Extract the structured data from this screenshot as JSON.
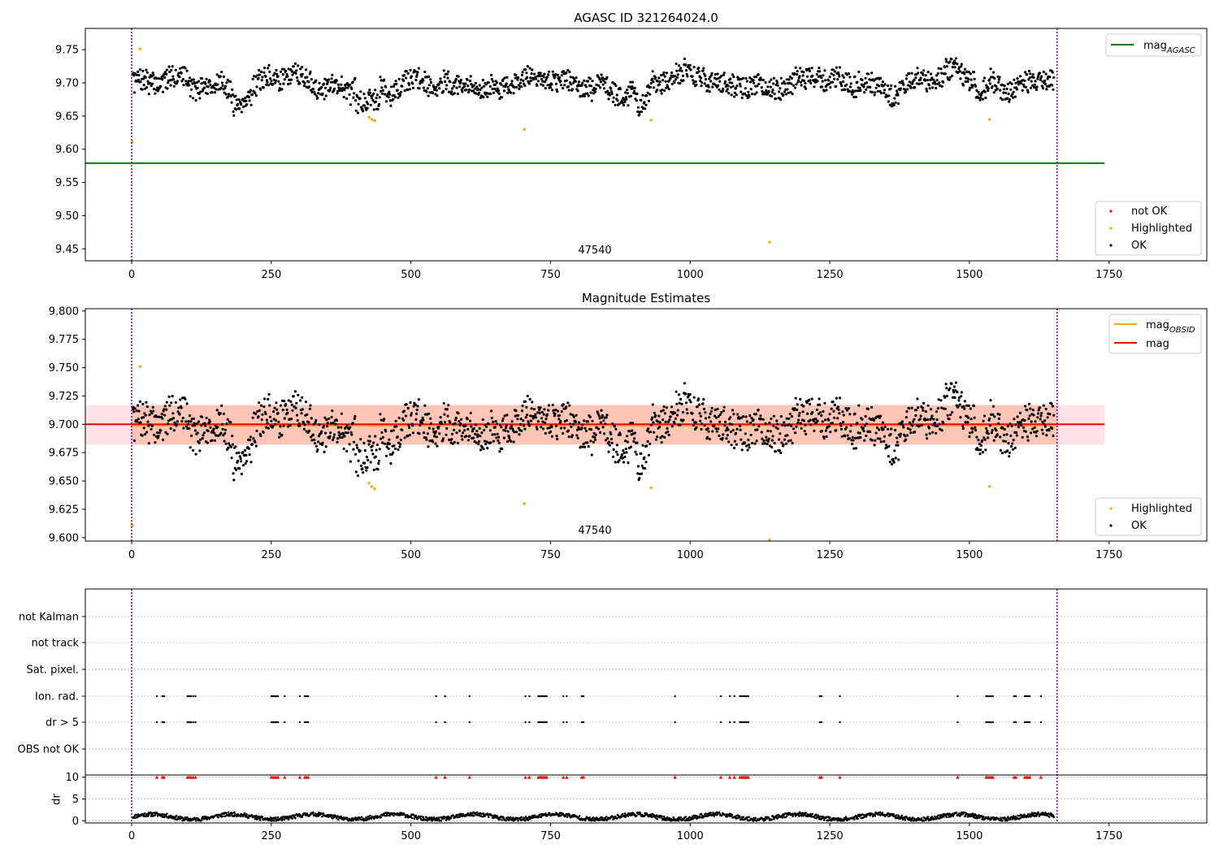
{
  "figure": {
    "title": "AGASC ID 321264024.0",
    "obsid_label": "47540"
  },
  "colors": {
    "ok": "#000000",
    "highlighted": "#ffa500",
    "not_ok": "#ff0000",
    "mag_agasc": "#008000",
    "mag_obsid": "#ffa500",
    "mag": "#ff0000",
    "obsid_boundary": "#800080",
    "band_outer": "#ffc0cb",
    "band_inner": "#ffa07a"
  },
  "chart_data": [
    {
      "type": "scatter",
      "title": "AGASC ID 321264024.0",
      "xlim": [
        -83,
        1925
      ],
      "ylim": [
        9.432,
        9.782
      ],
      "xticks": [
        0,
        250,
        500,
        750,
        1000,
        1250,
        1500,
        1750
      ],
      "yticks": [
        9.45,
        9.5,
        9.55,
        9.6,
        9.65,
        9.7,
        9.75
      ],
      "ytick_labels": [
        "9.45",
        "9.50",
        "9.55",
        "9.60",
        "9.65",
        "9.70",
        "9.75"
      ],
      "obsid_boundaries": [
        0,
        1657
      ],
      "annotation": {
        "text": "47540",
        "x": 830,
        "y": 9.442
      },
      "reference_lines": [
        {
          "name": "mag",
          "sub": "AGASC",
          "y": 9.579,
          "x": [
            -83,
            1742
          ],
          "color": "#008000"
        }
      ],
      "series": [
        {
          "name": "not OK",
          "color": "#ff0000",
          "points": []
        },
        {
          "name": "Highlighted",
          "color": "#ffa500",
          "points": [
            [
              1,
              9.611
            ],
            [
              15,
              9.751
            ],
            [
              425,
              9.648
            ],
            [
              430,
              9.645
            ],
            [
              435,
              9.643
            ],
            [
              703,
              9.63
            ],
            [
              930,
              9.644
            ],
            [
              1142,
              9.46
            ],
            [
              1536,
              9.645
            ]
          ]
        },
        {
          "name": "OK",
          "color": "#000000",
          "description_of_trend": "about 1650 points between 9.65 and 9.75 around 9.70"
        }
      ],
      "legend": [
        {
          "name": "mag",
          "sub": "AGASC",
          "kind": "line",
          "color": "#008000",
          "position": "top-right"
        },
        {
          "name": "not OK",
          "kind": "marker",
          "color": "#ff0000",
          "position": "lower-right"
        },
        {
          "name": "Highlighted",
          "kind": "marker",
          "color": "#ffa500",
          "position": "lower-right"
        },
        {
          "name": "OK",
          "kind": "marker",
          "color": "#000000",
          "position": "lower-right"
        }
      ]
    },
    {
      "type": "scatter",
      "title": "Magnitude Estimates",
      "xlim": [
        -83,
        1925
      ],
      "ylim": [
        9.597,
        9.802
      ],
      "xticks": [
        0,
        250,
        500,
        750,
        1000,
        1250,
        1500,
        1750
      ],
      "yticks": [
        9.6,
        9.625,
        9.65,
        9.675,
        9.7,
        9.725,
        9.75,
        9.775,
        9.8
      ],
      "ytick_labels": [
        "9.600",
        "9.625",
        "9.650",
        "9.675",
        "9.700",
        "9.725",
        "9.750",
        "9.775",
        "9.800"
      ],
      "obsid_boundaries": [
        0,
        1657
      ],
      "annotation": {
        "text": "47540",
        "x": 830,
        "y": 9.605
      },
      "bands": [
        {
          "x": [
            -83,
            1742
          ],
          "y": [
            9.682,
            9.717
          ],
          "color": "#ffc0cb"
        },
        {
          "x": [
            0,
            1657
          ],
          "y": [
            9.682,
            9.717
          ],
          "color": "#ffa07a"
        }
      ],
      "reference_lines": [
        {
          "name": "mag",
          "sub": "OBSID",
          "y": 9.699,
          "x": [
            0,
            1657
          ],
          "color": "#ffa500"
        },
        {
          "name": "mag",
          "y": 9.7,
          "x": [
            -83,
            1742
          ],
          "color": "#ff0000"
        }
      ],
      "series": [
        {
          "name": "Highlighted",
          "color": "#ffa500",
          "points": [
            [
              1,
              9.611
            ],
            [
              15,
              9.751
            ],
            [
              425,
              9.648
            ],
            [
              430,
              9.645
            ],
            [
              435,
              9.643
            ],
            [
              703,
              9.63
            ],
            [
              930,
              9.644
            ],
            [
              1142,
              9.598
            ],
            [
              1536,
              9.645
            ]
          ]
        },
        {
          "name": "OK",
          "color": "#000000"
        }
      ],
      "legend": [
        {
          "name": "mag",
          "sub": "OBSID",
          "kind": "line",
          "color": "#ffa500",
          "position": "top-right"
        },
        {
          "name": "mag",
          "kind": "line",
          "color": "#ff0000",
          "position": "top-right"
        },
        {
          "name": "Highlighted",
          "kind": "marker",
          "color": "#ffa500",
          "position": "lower-right"
        },
        {
          "name": "OK",
          "kind": "marker",
          "color": "#000000",
          "position": "lower-right"
        }
      ]
    },
    {
      "type": "scatter",
      "title": "",
      "xlim": [
        -83,
        1925
      ],
      "xticks": [
        0,
        250,
        500,
        750,
        1000,
        1250,
        1500,
        1750
      ],
      "flag_rows": [
        "not Kalman",
        "not track",
        "Sat. pixel.",
        "Ion. rad.",
        "dr > 5",
        "OBS not OK"
      ],
      "flags": {
        "Ion. rad.": [
          45,
          55,
          58,
          100,
          103,
          106,
          110,
          114,
          250,
          253,
          256,
          259,
          262,
          274,
          301,
          310,
          313,
          316,
          545,
          561,
          605,
          705,
          712,
          728,
          731,
          734,
          737,
          740,
          743,
          773,
          779,
          806,
          809,
          973,
          1055,
          1071,
          1079,
          1089,
          1092,
          1095,
          1098,
          1101,
          1104,
          1232,
          1235,
          1268,
          1479,
          1530,
          1533,
          1536,
          1539,
          1542,
          1580,
          1583,
          1599,
          1602,
          1605,
          1608,
          1628
        ],
        "dr > 5": [
          45,
          55,
          58,
          100,
          103,
          106,
          110,
          114,
          250,
          253,
          256,
          259,
          262,
          274,
          301,
          310,
          313,
          316,
          545,
          561,
          605,
          705,
          712,
          728,
          731,
          734,
          737,
          740,
          743,
          773,
          779,
          806,
          809,
          973,
          1055,
          1071,
          1079,
          1089,
          1092,
          1095,
          1098,
          1101,
          1104,
          1232,
          1235,
          1268,
          1479,
          1530,
          1533,
          1536,
          1539,
          1542,
          1580,
          1583,
          1599,
          1602,
          1605,
          1608,
          1628
        ]
      },
      "dr_panel": {
        "ylabel": "dr",
        "ylim": [
          -0.5,
          10.5
        ],
        "yticks": [
          0,
          5,
          10
        ],
        "ytick_labels": [
          "0",
          "5",
          "10"
        ],
        "clipped_value": 10,
        "clipped_color": "#ff0000"
      },
      "obsid_boundaries": [
        0,
        1657
      ]
    }
  ]
}
